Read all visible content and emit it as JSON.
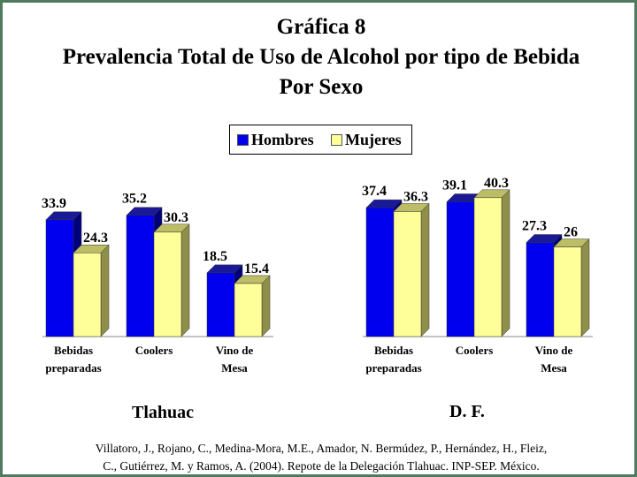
{
  "header": {
    "title_line1": "Gráfica 8",
    "title_line2": "Prevalencia Total de Uso de Alcohol por tipo de Bebida",
    "title_line3": "Por Sexo"
  },
  "legend": {
    "hombres": "Hombres",
    "mujeres": "Mujeres"
  },
  "colors": {
    "hombres": "#0000ee",
    "mujeres": "#ffff99",
    "frame": "#4f7a5e"
  },
  "chart_data": [
    {
      "type": "bar",
      "panel": "Tlahuac",
      "categories": [
        [
          "Bebidas",
          "preparadas"
        ],
        [
          "Coolers"
        ],
        [
          "Vino de",
          "Mesa"
        ]
      ],
      "series": [
        {
          "name": "Hombres",
          "values": [
            33.9,
            35.2,
            18.5
          ],
          "labels": [
            "33.9",
            "35.2",
            "18.5"
          ]
        },
        {
          "name": "Mujeres",
          "values": [
            24.3,
            30.3,
            15.4
          ],
          "labels": [
            "24.3",
            "30.3",
            "15.4"
          ]
        }
      ],
      "grid": false,
      "legend_position": "top"
    },
    {
      "type": "bar",
      "panel": "D. F.",
      "categories": [
        [
          "Bebidas",
          "preparadas"
        ],
        [
          "Coolers"
        ],
        [
          "Vino de",
          "Mesa"
        ]
      ],
      "series": [
        {
          "name": "Hombres",
          "values": [
            37.4,
            39.1,
            27.3
          ],
          "labels": [
            "37.4",
            "39.1",
            "27.3"
          ]
        },
        {
          "name": "Mujeres",
          "values": [
            36.3,
            40.3,
            26
          ],
          "labels": [
            "36.3",
            "40.3",
            "26"
          ]
        }
      ],
      "grid": false,
      "legend_position": "top"
    }
  ],
  "citation": {
    "line1": "Villatoro, J., Rojano, C., Medina-Mora, M.E., Amador, N. Bermúdez, P., Hernández, H., Fleiz,",
    "line2": "C., Gutiérrez, M. y Ramos, A. (2004). Repote de la Delegación Tlahuac. INP-SEP. México."
  }
}
